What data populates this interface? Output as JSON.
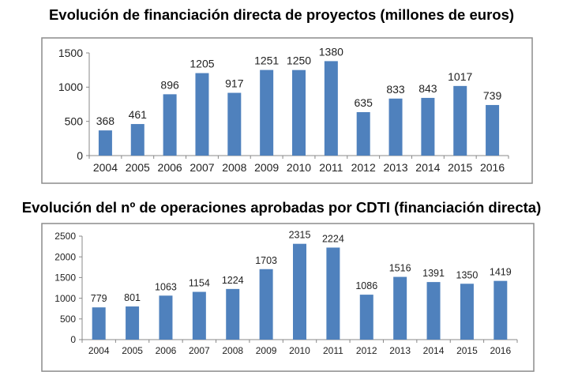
{
  "chart_data": [
    {
      "type": "bar",
      "title": "Evolución de financiación directa de proyectos (millones de euros)",
      "categories": [
        "2004",
        "2005",
        "2006",
        "2007",
        "2008",
        "2009",
        "2010",
        "2011",
        "2012",
        "2013",
        "2014",
        "2015",
        "2016"
      ],
      "values": [
        368,
        461,
        896,
        1205,
        917,
        1251,
        1250,
        1380,
        635,
        833,
        843,
        1017,
        739
      ],
      "yticks": [
        0,
        500,
        1000,
        1500
      ],
      "ylim": [
        0,
        1500
      ],
      "xlabel": "",
      "ylabel": "",
      "grid": false,
      "bar_color": "#4F81BD",
      "data_labels": true
    },
    {
      "type": "bar",
      "title": "Evolución del nº de operaciones aprobadas por CDTI (financiación directa)",
      "categories": [
        "2004",
        "2005",
        "2006",
        "2007",
        "2008",
        "2009",
        "2010",
        "2011",
        "2012",
        "2013",
        "2014",
        "2015",
        "2016"
      ],
      "values": [
        779,
        801,
        1063,
        1154,
        1224,
        1703,
        2315,
        2224,
        1086,
        1516,
        1391,
        1350,
        1419
      ],
      "yticks": [
        0,
        500,
        1000,
        1500,
        2000,
        2500
      ],
      "ylim": [
        0,
        2500
      ],
      "xlabel": "",
      "ylabel": "",
      "grid": false,
      "bar_color": "#4F81BD",
      "data_labels": true
    }
  ]
}
